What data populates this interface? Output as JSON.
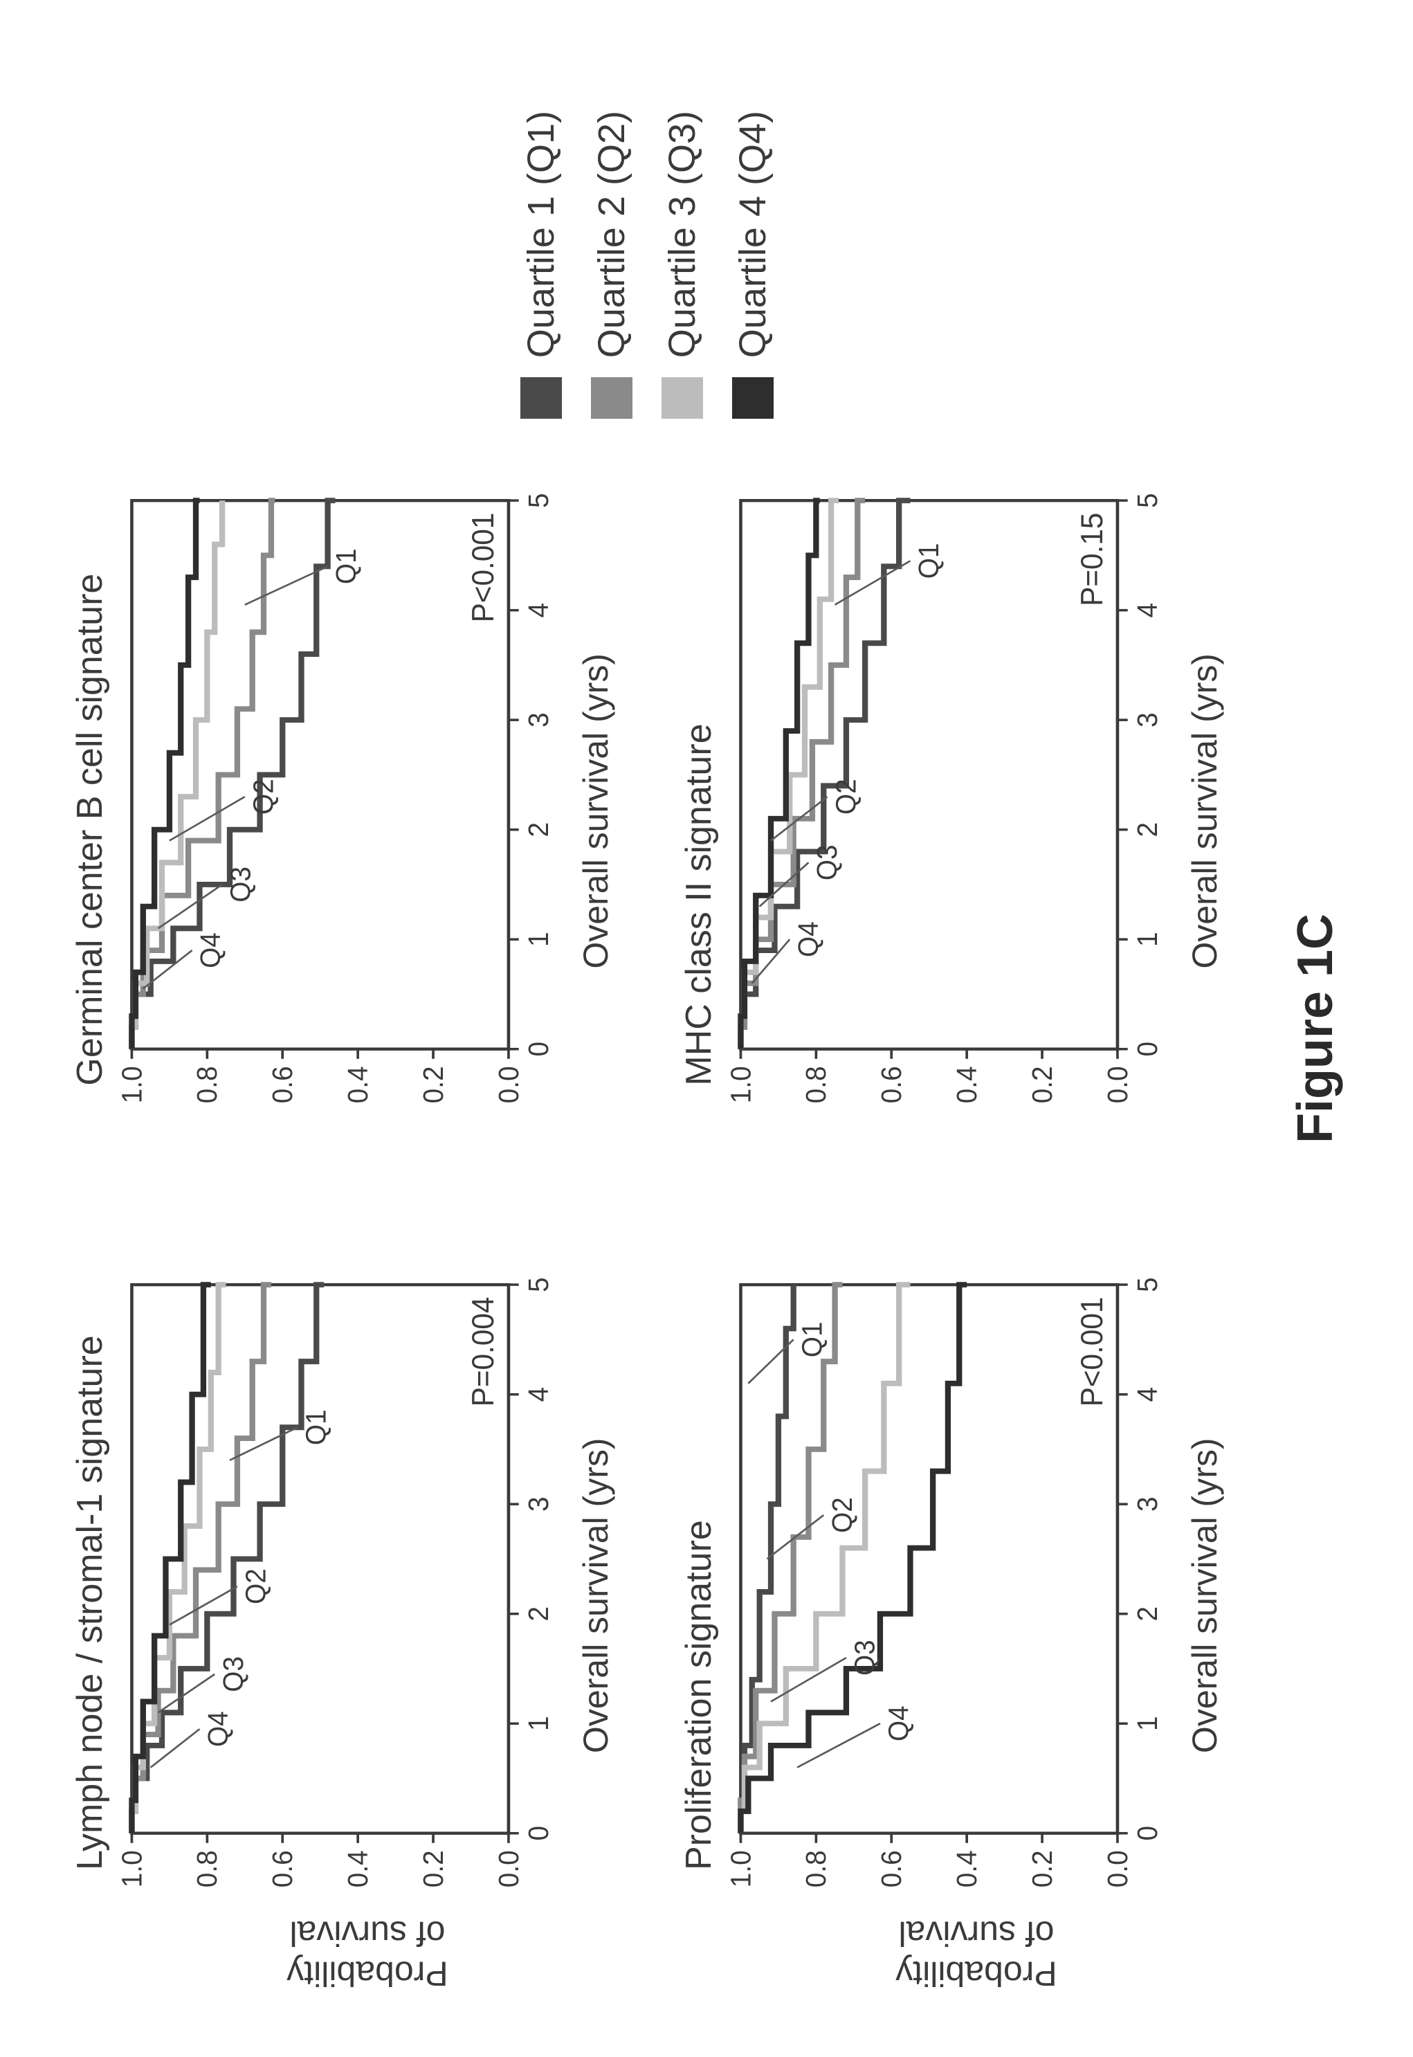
{
  "figure_caption": "Figure 1C",
  "ylabel_line1": "Probability",
  "ylabel_line2": "of survival",
  "xlabel": "Overall survival (yrs)",
  "axes": {
    "xlim": [
      0,
      5
    ],
    "ylim": [
      0,
      1
    ],
    "xticks": [
      0,
      1,
      2,
      3,
      4,
      5
    ],
    "yticks": [
      0.0,
      0.2,
      0.4,
      0.6,
      0.8,
      1.0
    ],
    "ytick_labels": [
      "0.0",
      "0.2",
      "0.4",
      "0.6",
      "0.8",
      "1.0"
    ],
    "axis_color": "#3a3a3a",
    "background": "#ffffff",
    "line_width": 9,
    "axis_line_width": 5,
    "tick_font_size": 44
  },
  "legend": {
    "items": [
      {
        "key": "Q1",
        "label": "Quartile 1  (Q1)",
        "color": "#4a4a4a"
      },
      {
        "key": "Q2",
        "label": "Quartile 2 (Q2)",
        "color": "#8a8a8a"
      },
      {
        "key": "Q3",
        "label": "Quartile 3 (Q3)",
        "color": "#bcbcbc"
      },
      {
        "key": "Q4",
        "label": "Quartile 4  (Q4)",
        "color": "#2e2e2e"
      }
    ]
  },
  "colors": {
    "Q1": "#4a4a4a",
    "Q2": "#8a8a8a",
    "Q3": "#bcbcbc",
    "Q4": "#2e2e2e"
  },
  "panels": [
    {
      "id": "lymph",
      "title": "Lymph node / stromal-1 signature",
      "pvalue": "P=0.004",
      "show_ylabel": true,
      "annotations": [
        {
          "label": "Q4",
          "lx": 0.95,
          "ly": 0.82,
          "tx": 0.6,
          "ty": 0.95
        },
        {
          "label": "Q3",
          "lx": 1.45,
          "ly": 0.78,
          "tx": 1.1,
          "ty": 0.93
        },
        {
          "label": "Q2",
          "lx": 2.25,
          "ly": 0.72,
          "tx": 1.9,
          "ty": 0.9
        },
        {
          "label": "Q1",
          "lx": 3.7,
          "ly": 0.56,
          "tx": 3.4,
          "ty": 0.74
        }
      ],
      "series": {
        "Q1": [
          [
            0,
            1.0
          ],
          [
            0.2,
            0.99
          ],
          [
            0.5,
            0.96
          ],
          [
            0.8,
            0.92
          ],
          [
            1.1,
            0.87
          ],
          [
            1.5,
            0.8
          ],
          [
            2.0,
            0.73
          ],
          [
            2.5,
            0.66
          ],
          [
            3.0,
            0.6
          ],
          [
            3.7,
            0.55
          ],
          [
            4.3,
            0.51
          ],
          [
            5.0,
            0.49
          ]
        ],
        "Q2": [
          [
            0,
            1.0
          ],
          [
            0.2,
            0.99
          ],
          [
            0.5,
            0.97
          ],
          [
            0.9,
            0.93
          ],
          [
            1.3,
            0.89
          ],
          [
            1.8,
            0.83
          ],
          [
            2.4,
            0.77
          ],
          [
            3.0,
            0.72
          ],
          [
            3.6,
            0.68
          ],
          [
            4.3,
            0.65
          ],
          [
            5.0,
            0.63
          ]
        ],
        "Q3": [
          [
            0,
            1.0
          ],
          [
            0.2,
            0.99
          ],
          [
            0.6,
            0.97
          ],
          [
            1.0,
            0.94
          ],
          [
            1.6,
            0.9
          ],
          [
            2.2,
            0.86
          ],
          [
            2.8,
            0.82
          ],
          [
            3.5,
            0.79
          ],
          [
            4.2,
            0.77
          ],
          [
            5.0,
            0.75
          ]
        ],
        "Q4": [
          [
            0,
            1.0
          ],
          [
            0.3,
            0.99
          ],
          [
            0.7,
            0.97
          ],
          [
            1.2,
            0.94
          ],
          [
            1.8,
            0.91
          ],
          [
            2.5,
            0.87
          ],
          [
            3.2,
            0.84
          ],
          [
            4.0,
            0.81
          ],
          [
            5.0,
            0.79
          ]
        ]
      }
    },
    {
      "id": "gcb",
      "title": "Germinal center B cell signature",
      "pvalue": "P<0.001",
      "show_ylabel": false,
      "annotations": [
        {
          "label": "Q4",
          "lx": 0.9,
          "ly": 0.84,
          "tx": 0.55,
          "ty": 0.97
        },
        {
          "label": "Q3",
          "lx": 1.5,
          "ly": 0.76,
          "tx": 1.1,
          "ty": 0.93
        },
        {
          "label": "Q2",
          "lx": 2.3,
          "ly": 0.7,
          "tx": 1.9,
          "ty": 0.9
        },
        {
          "label": "Q1",
          "lx": 4.4,
          "ly": 0.48,
          "tx": 4.05,
          "ty": 0.7
        }
      ],
      "series": {
        "Q1": [
          [
            0,
            1.0
          ],
          [
            0.2,
            0.99
          ],
          [
            0.5,
            0.95
          ],
          [
            0.8,
            0.89
          ],
          [
            1.1,
            0.82
          ],
          [
            1.5,
            0.74
          ],
          [
            2.0,
            0.66
          ],
          [
            2.5,
            0.6
          ],
          [
            3.0,
            0.55
          ],
          [
            3.6,
            0.51
          ],
          [
            4.4,
            0.48
          ],
          [
            5.0,
            0.46
          ]
        ],
        "Q2": [
          [
            0,
            1.0
          ],
          [
            0.2,
            0.99
          ],
          [
            0.5,
            0.97
          ],
          [
            0.9,
            0.92
          ],
          [
            1.4,
            0.85
          ],
          [
            1.9,
            0.77
          ],
          [
            2.5,
            0.72
          ],
          [
            3.1,
            0.68
          ],
          [
            3.8,
            0.65
          ],
          [
            4.5,
            0.63
          ],
          [
            5.0,
            0.62
          ]
        ],
        "Q3": [
          [
            0,
            1.0
          ],
          [
            0.2,
            0.99
          ],
          [
            0.6,
            0.96
          ],
          [
            1.1,
            0.92
          ],
          [
            1.7,
            0.87
          ],
          [
            2.3,
            0.83
          ],
          [
            3.0,
            0.8
          ],
          [
            3.8,
            0.78
          ],
          [
            4.6,
            0.76
          ],
          [
            5.0,
            0.76
          ]
        ],
        "Q4": [
          [
            0,
            1.0
          ],
          [
            0.3,
            0.99
          ],
          [
            0.7,
            0.97
          ],
          [
            1.3,
            0.94
          ],
          [
            2.0,
            0.9
          ],
          [
            2.7,
            0.87
          ],
          [
            3.5,
            0.85
          ],
          [
            4.3,
            0.83
          ],
          [
            5.0,
            0.82
          ]
        ]
      }
    },
    {
      "id": "prolif",
      "title": "Proliferation signature",
      "pvalue": "P<0.001",
      "show_ylabel": true,
      "annotations": [
        {
          "label": "Q4",
          "lx": 1.0,
          "ly": 0.63,
          "tx": 0.6,
          "ty": 0.85
        },
        {
          "label": "Q3",
          "lx": 1.6,
          "ly": 0.72,
          "tx": 1.2,
          "ty": 0.92
        },
        {
          "label": "Q2",
          "lx": 2.9,
          "ly": 0.78,
          "tx": 2.5,
          "ty": 0.93
        },
        {
          "label": "Q1",
          "lx": 4.5,
          "ly": 0.86,
          "tx": 4.1,
          "ty": 0.98
        }
      ],
      "series": {
        "Q1": [
          [
            0,
            1.0
          ],
          [
            0.3,
            0.99
          ],
          [
            0.8,
            0.97
          ],
          [
            1.4,
            0.95
          ],
          [
            2.2,
            0.92
          ],
          [
            3.0,
            0.9
          ],
          [
            3.8,
            0.88
          ],
          [
            4.6,
            0.86
          ],
          [
            5.0,
            0.86
          ]
        ],
        "Q2": [
          [
            0,
            1.0
          ],
          [
            0.3,
            0.99
          ],
          [
            0.7,
            0.96
          ],
          [
            1.3,
            0.91
          ],
          [
            2.0,
            0.86
          ],
          [
            2.7,
            0.82
          ],
          [
            3.5,
            0.78
          ],
          [
            4.3,
            0.75
          ],
          [
            5.0,
            0.73
          ]
        ],
        "Q3": [
          [
            0,
            1.0
          ],
          [
            0.2,
            0.99
          ],
          [
            0.6,
            0.95
          ],
          [
            1.0,
            0.88
          ],
          [
            1.5,
            0.8
          ],
          [
            2.0,
            0.73
          ],
          [
            2.6,
            0.67
          ],
          [
            3.3,
            0.62
          ],
          [
            4.1,
            0.58
          ],
          [
            5.0,
            0.55
          ]
        ],
        "Q4": [
          [
            0,
            1.0
          ],
          [
            0.2,
            0.98
          ],
          [
            0.5,
            0.92
          ],
          [
            0.8,
            0.82
          ],
          [
            1.1,
            0.72
          ],
          [
            1.5,
            0.63
          ],
          [
            2.0,
            0.55
          ],
          [
            2.6,
            0.49
          ],
          [
            3.3,
            0.45
          ],
          [
            4.1,
            0.42
          ],
          [
            5.0,
            0.4
          ]
        ]
      }
    },
    {
      "id": "mhc",
      "title": "MHC class II signature",
      "pvalue": "P=0.15",
      "show_ylabel": false,
      "annotations": [
        {
          "label": "Q4",
          "lx": 1.0,
          "ly": 0.87,
          "tx": 0.6,
          "ty": 0.97
        },
        {
          "label": "Q3",
          "lx": 1.7,
          "ly": 0.82,
          "tx": 1.3,
          "ty": 0.95
        },
        {
          "label": "Q2",
          "lx": 2.3,
          "ly": 0.77,
          "tx": 1.9,
          "ty": 0.92
        },
        {
          "label": "Q1",
          "lx": 4.45,
          "ly": 0.55,
          "tx": 4.05,
          "ty": 0.75
        }
      ],
      "series": {
        "Q1": [
          [
            0,
            1.0
          ],
          [
            0.2,
            0.99
          ],
          [
            0.5,
            0.96
          ],
          [
            0.9,
            0.91
          ],
          [
            1.3,
            0.85
          ],
          [
            1.8,
            0.78
          ],
          [
            2.4,
            0.72
          ],
          [
            3.0,
            0.67
          ],
          [
            3.7,
            0.62
          ],
          [
            4.4,
            0.58
          ],
          [
            5.0,
            0.55
          ]
        ],
        "Q2": [
          [
            0,
            1.0
          ],
          [
            0.2,
            0.99
          ],
          [
            0.6,
            0.96
          ],
          [
            1.0,
            0.92
          ],
          [
            1.5,
            0.86
          ],
          [
            2.1,
            0.81
          ],
          [
            2.8,
            0.76
          ],
          [
            3.5,
            0.72
          ],
          [
            4.3,
            0.69
          ],
          [
            5.0,
            0.67
          ]
        ],
        "Q3": [
          [
            0,
            1.0
          ],
          [
            0.3,
            0.99
          ],
          [
            0.7,
            0.96
          ],
          [
            1.2,
            0.92
          ],
          [
            1.8,
            0.87
          ],
          [
            2.5,
            0.83
          ],
          [
            3.3,
            0.79
          ],
          [
            4.1,
            0.76
          ],
          [
            5.0,
            0.74
          ]
        ],
        "Q4": [
          [
            0,
            1.0
          ],
          [
            0.3,
            0.99
          ],
          [
            0.8,
            0.96
          ],
          [
            1.4,
            0.92
          ],
          [
            2.1,
            0.88
          ],
          [
            2.9,
            0.85
          ],
          [
            3.7,
            0.82
          ],
          [
            4.5,
            0.8
          ],
          [
            5.0,
            0.79
          ]
        ]
      }
    }
  ]
}
